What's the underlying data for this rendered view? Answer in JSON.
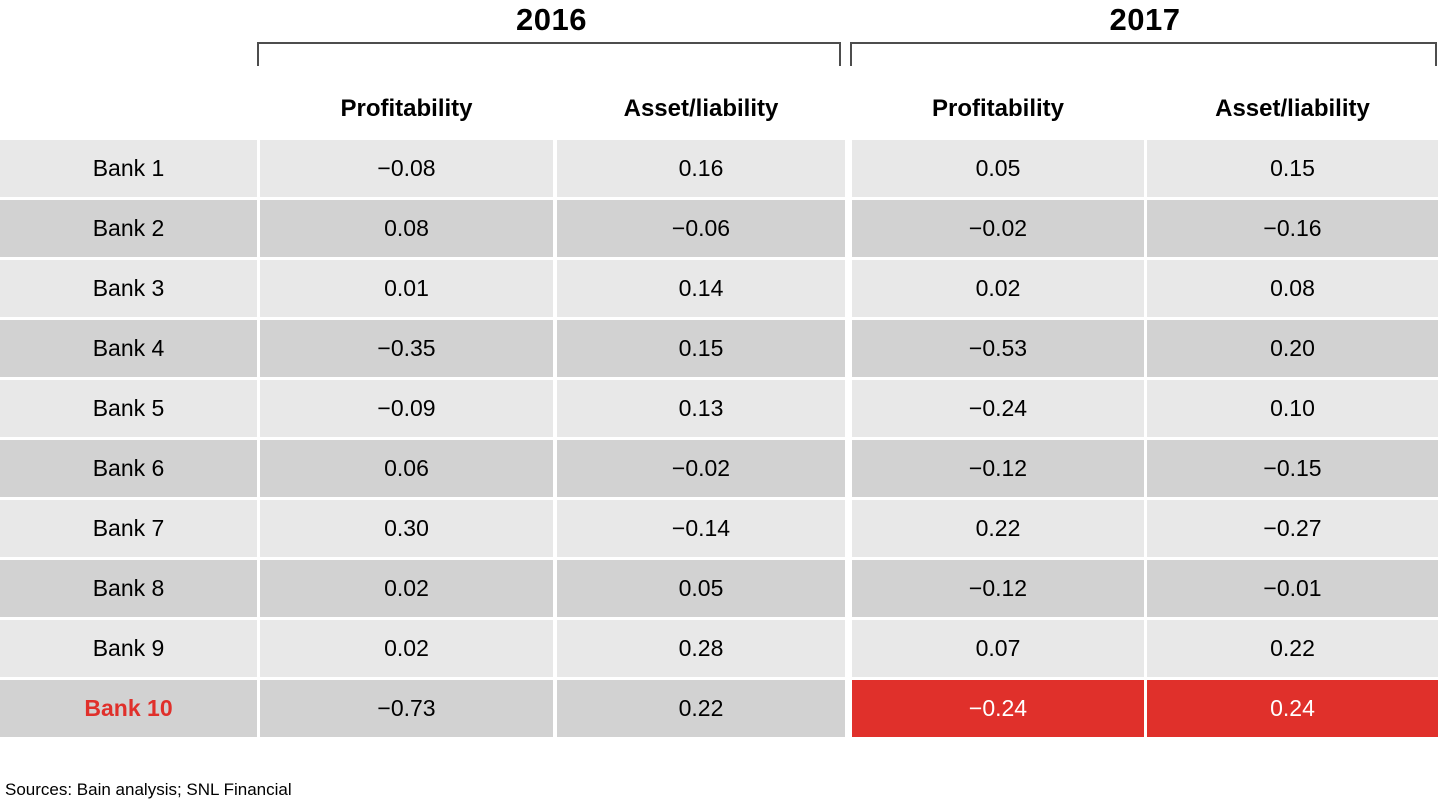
{
  "header": {
    "year_groups": [
      {
        "label": "2016"
      },
      {
        "label": "2017"
      }
    ],
    "columns": [
      "Profitability",
      "Asset/liability",
      "Profitability",
      "Asset/liability"
    ]
  },
  "chart_data": {
    "type": "table",
    "title": "",
    "column_groups": [
      "2016",
      "2017"
    ],
    "columns": [
      "Bank",
      "2016 Profitability",
      "2016 Asset/liability",
      "2017 Profitability",
      "2017 Asset/liability"
    ],
    "rows": [
      {
        "bank": "Bank 1",
        "values": [
          -0.08,
          0.16,
          0.05,
          0.15
        ]
      },
      {
        "bank": "Bank 2",
        "values": [
          0.08,
          -0.06,
          -0.02,
          -0.16
        ]
      },
      {
        "bank": "Bank 3",
        "values": [
          0.01,
          0.14,
          0.02,
          0.08
        ]
      },
      {
        "bank": "Bank 4",
        "values": [
          -0.35,
          0.15,
          -0.53,
          0.2
        ]
      },
      {
        "bank": "Bank 5",
        "values": [
          -0.09,
          0.13,
          -0.24,
          0.1
        ]
      },
      {
        "bank": "Bank 6",
        "values": [
          0.06,
          -0.02,
          -0.12,
          -0.15
        ]
      },
      {
        "bank": "Bank 7",
        "values": [
          0.3,
          -0.14,
          0.22,
          -0.27
        ]
      },
      {
        "bank": "Bank 8",
        "values": [
          0.02,
          0.05,
          -0.12,
          -0.01
        ]
      },
      {
        "bank": "Bank 9",
        "values": [
          0.02,
          0.28,
          0.07,
          0.22
        ]
      },
      {
        "bank": "Bank 10",
        "values": [
          -0.73,
          0.22,
          -0.24,
          0.24
        ]
      }
    ],
    "highlight_note": "Bank 10 row label red; Bank 10 2017 Profitability and Asset/liability cells red with white text"
  },
  "table": {
    "rows": [
      {
        "bank": "Bank 1",
        "cells": [
          "−0.08",
          "0.16",
          "0.05",
          "0.15"
        ],
        "highlight_2017": false
      },
      {
        "bank": "Bank 2",
        "cells": [
          "0.08",
          "−0.06",
          "−0.02",
          "−0.16"
        ],
        "highlight_2017": false
      },
      {
        "bank": "Bank 3",
        "cells": [
          "0.01",
          "0.14",
          "0.02",
          "0.08"
        ],
        "highlight_2017": false
      },
      {
        "bank": "Bank 4",
        "cells": [
          "−0.35",
          "0.15",
          "−0.53",
          "0.20"
        ],
        "highlight_2017": false
      },
      {
        "bank": "Bank 5",
        "cells": [
          "−0.09",
          "0.13",
          "−0.24",
          "0.10"
        ],
        "highlight_2017": false
      },
      {
        "bank": "Bank 6",
        "cells": [
          "0.06",
          "−0.02",
          "−0.12",
          "−0.15"
        ],
        "highlight_2017": false
      },
      {
        "bank": "Bank 7",
        "cells": [
          "0.30",
          "−0.14",
          "0.22",
          "−0.27"
        ],
        "highlight_2017": false
      },
      {
        "bank": "Bank 8",
        "cells": [
          "0.02",
          "0.05",
          "−0.12",
          "−0.01"
        ],
        "highlight_2017": false
      },
      {
        "bank": "Bank 9",
        "cells": [
          "0.02",
          "0.28",
          "0.07",
          "0.22"
        ],
        "highlight_2017": false
      },
      {
        "bank": "Bank 10",
        "cells": [
          "−0.73",
          "0.22",
          "−0.24",
          "0.24"
        ],
        "highlight_2017": true
      }
    ]
  },
  "footer": {
    "sources": "Sources: Bain analysis; SNL Financial"
  },
  "colors": {
    "highlight_red": "#e0302b",
    "row_light": "#e8e8e8",
    "row_dark": "#d2d2d2",
    "bracket_line": "#4d4d4d"
  }
}
